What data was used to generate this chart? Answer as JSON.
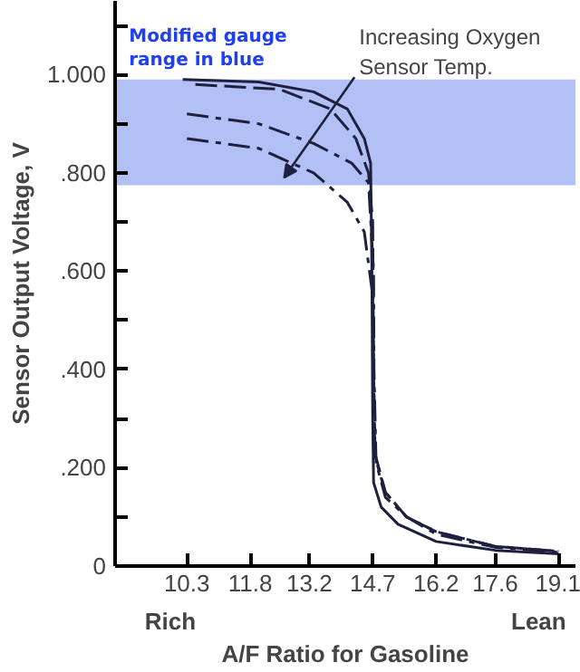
{
  "chart_data": {
    "type": "line",
    "xlabel": "A/F Ratio for Gasoline",
    "ylabel": "Sensor Output Voltage, V",
    "xlim": [
      8.6,
      19.5
    ],
    "xticks": [
      10.3,
      11.8,
      13.2,
      14.7,
      16.2,
      17.6,
      19.1
    ],
    "ylim": [
      0,
      1.15
    ],
    "yticks": [
      {
        "value": 0,
        "label": "0"
      },
      {
        "value": 0.1,
        "label": null
      },
      {
        "value": 0.2,
        "label": ".200"
      },
      {
        "value": 0.3,
        "label": null
      },
      {
        "value": 0.4,
        "label": ".400"
      },
      {
        "value": 0.5,
        "label": null
      },
      {
        "value": 0.6,
        "label": ".600"
      },
      {
        "value": 0.7,
        "label": null
      },
      {
        "value": 0.8,
        "label": ".800"
      },
      {
        "value": 0.9,
        "label": null
      },
      {
        "value": 1.0,
        "label": "1.000"
      },
      {
        "value": 1.1,
        "label": null
      }
    ],
    "grid": false,
    "series": [
      {
        "color": "#1f2040",
        "line_style": "solid",
        "x": [
          10.2,
          12.0,
          13.3,
          14.1,
          14.5,
          14.65,
          14.68,
          14.7,
          14.72,
          14.9,
          15.3,
          16.2,
          17.6,
          19.1
        ],
        "values": [
          0.99,
          0.985,
          0.965,
          0.93,
          0.87,
          0.82,
          0.6,
          0.3,
          0.17,
          0.12,
          0.085,
          0.05,
          0.032,
          0.025
        ]
      },
      {
        "color": "#1f2040",
        "line_style": "dashed",
        "x": [
          10.5,
          12.5,
          13.7,
          14.3,
          14.6,
          14.7,
          14.72,
          14.75,
          15.0,
          15.5,
          16.2,
          17.6,
          19.1
        ],
        "values": [
          0.98,
          0.97,
          0.93,
          0.87,
          0.8,
          0.7,
          0.4,
          0.23,
          0.15,
          0.1,
          0.07,
          0.04,
          0.03
        ]
      },
      {
        "color": "#1f2040",
        "line_style": "dashdot",
        "x": [
          10.3,
          12.0,
          13.3,
          14.2,
          14.6,
          14.72,
          14.73,
          14.78,
          15.0,
          15.5,
          16.2,
          17.6,
          19.1
        ],
        "values": [
          0.92,
          0.9,
          0.86,
          0.82,
          0.78,
          0.6,
          0.4,
          0.21,
          0.14,
          0.1,
          0.065,
          0.038,
          0.028
        ]
      },
      {
        "color": "#1f2040",
        "line_style": "dashdot",
        "x": [
          10.3,
          12.0,
          13.3,
          14.1,
          14.5,
          14.7,
          14.73,
          14.76,
          15.0,
          15.5,
          16.2,
          17.6,
          19.1
        ],
        "values": [
          0.87,
          0.85,
          0.8,
          0.74,
          0.68,
          0.55,
          0.35,
          0.22,
          0.15,
          0.1,
          0.07,
          0.04,
          0.03
        ]
      }
    ],
    "bands": [
      {
        "axis": "y",
        "from": 0.775,
        "to": 0.99,
        "color": "#b3c0f5",
        "label": "Modified gauge\nrange in blue"
      }
    ],
    "annotations": [
      {
        "text": "Increasing Oxygen\nSensor Temp.",
        "x": 12.6,
        "y": 0.79
      },
      "Rich",
      "Lean"
    ]
  }
}
